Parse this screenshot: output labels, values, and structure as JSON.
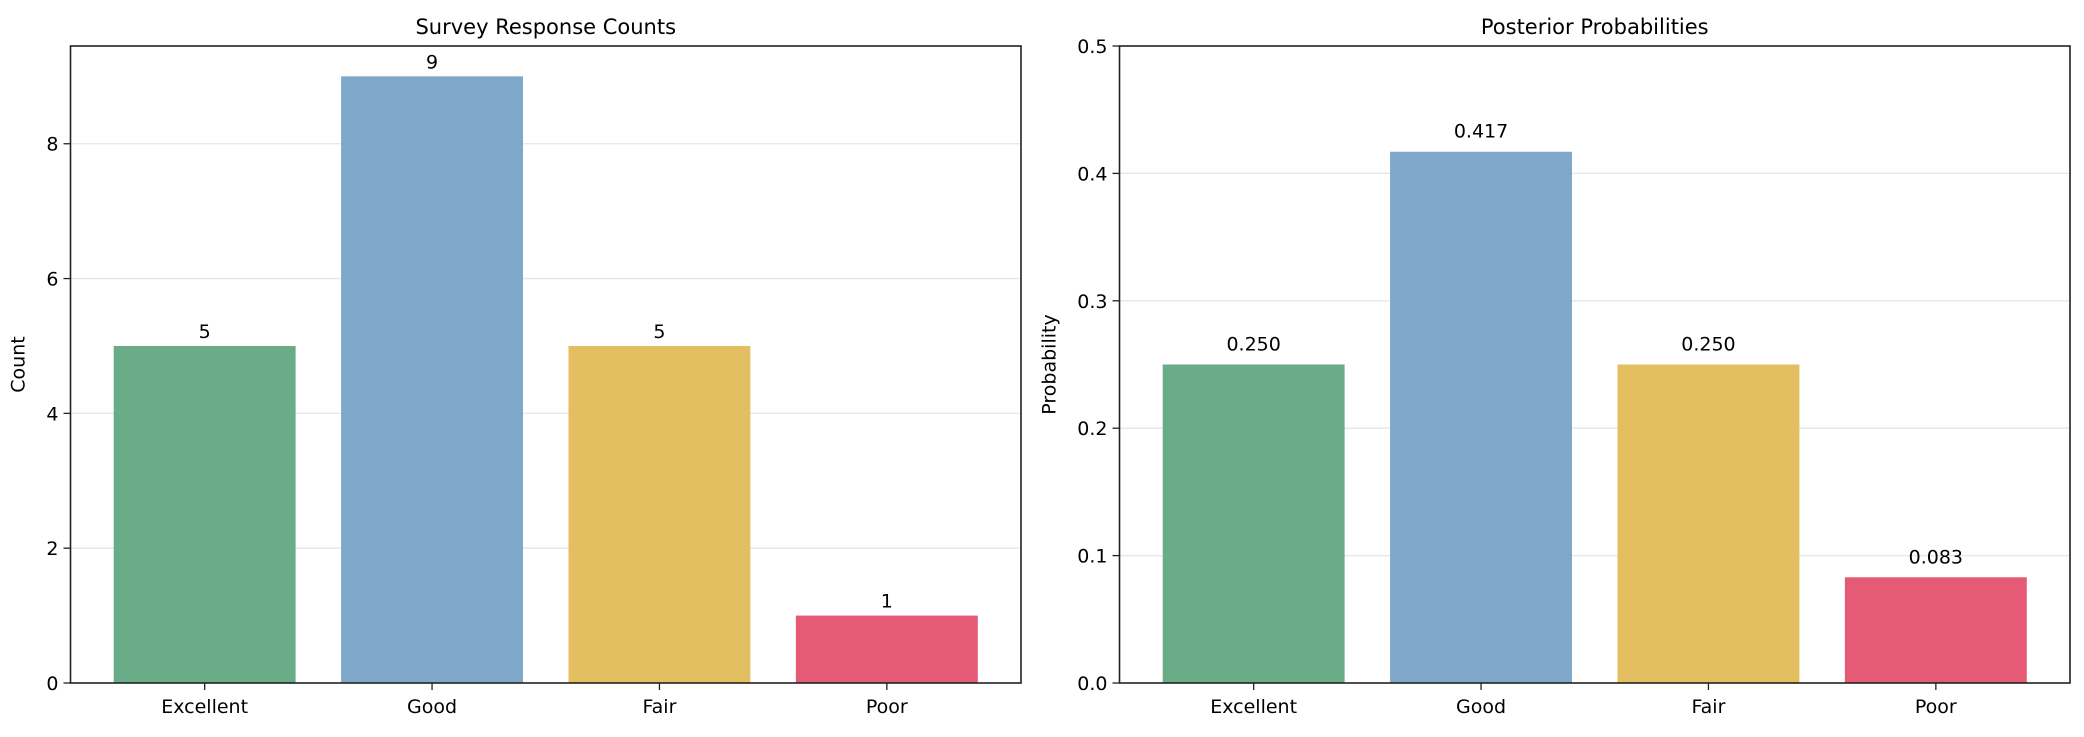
{
  "chart_data": [
    {
      "type": "bar",
      "title": "Survey Response Counts",
      "xlabel": "",
      "ylabel": "Count",
      "categories": [
        "Excellent",
        "Good",
        "Fair",
        "Poor"
      ],
      "values": [
        5,
        9,
        5,
        1
      ],
      "data_labels": [
        "5",
        "9",
        "5",
        "1"
      ],
      "ylim": [
        0,
        9.45
      ],
      "yticks": [
        0,
        2,
        4,
        6,
        8
      ],
      "ytick_labels": [
        "0",
        "2",
        "4",
        "6",
        "8"
      ],
      "grid": "y",
      "colors": [
        "#6aac88",
        "#7ea7ca",
        "#e4bf62",
        "#e55b75"
      ]
    },
    {
      "type": "bar",
      "title": "Posterior Probabilities",
      "xlabel": "",
      "ylabel": "Probability",
      "categories": [
        "Excellent",
        "Good",
        "Fair",
        "Poor"
      ],
      "values": [
        0.25,
        0.417,
        0.25,
        0.083
      ],
      "data_labels": [
        "0.250",
        "0.417",
        "0.250",
        "0.083"
      ],
      "ylim": [
        0,
        0.5
      ],
      "yticks": [
        0,
        0.1,
        0.2,
        0.3,
        0.4,
        0.5
      ],
      "ytick_labels": [
        "0.0",
        "0.1",
        "0.2",
        "0.3",
        "0.4",
        "0.5"
      ],
      "grid": "y",
      "colors": [
        "#6aac88",
        "#7ea7ca",
        "#e4bf62",
        "#e55b75"
      ]
    }
  ]
}
